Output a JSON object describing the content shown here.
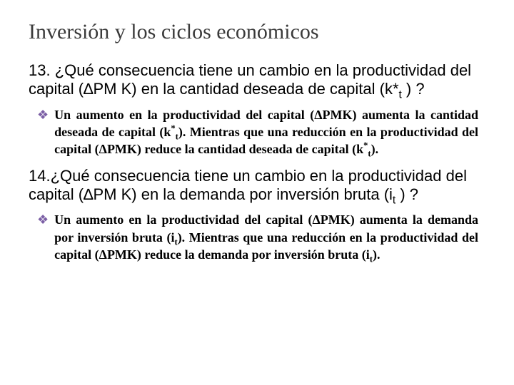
{
  "title": "Inversión y los ciclos económicos",
  "q13": {
    "num": "13.",
    "text_pre": " ¿Qué consecuencia tiene un  cambio en la productividad del capital (∆PM K)  en la cantidad deseada de capital (k*",
    "sub": "t",
    "text_post": " ) ?"
  },
  "a13": {
    "p1": "Un aumento en la productividad del capital (",
    "d1": "Δ",
    "p2": "PMK) aumenta la cantidad deseada de capital (k",
    "sup1": "*",
    "sub1": "t",
    "p3": "). Mientras que una reducción en la productividad del capital (",
    "d2": "Δ",
    "p4": "PMK) reduce  la cantidad deseada de capital (k",
    "sup2": "*",
    "sub2": "t",
    "p5": ")."
  },
  "q14": {
    "num": "14.",
    "text_pre": "¿Qué consecuencia tiene un  cambio en la productividad del capital (∆PM K) en la demanda por inversión bruta (i",
    "sub": "t",
    "text_post": " ) ?"
  },
  "a14": {
    "p1": "Un aumento en la productividad del capital (",
    "d1": "Δ",
    "p2": "PMK) aumenta la demanda por inversión bruta (i",
    "sub1": "t",
    "p3": "). Mientras que una reducción en la productividad del capital (",
    "d2": "Δ",
    "p4": "PMK) reduce la demanda por inversión bruta (i",
    "sub2": "t",
    "p5": ")."
  },
  "colors": {
    "bullet": "#7b5fa5",
    "title": "#3a3a3a",
    "text": "#000000",
    "bg": "#ffffff"
  }
}
